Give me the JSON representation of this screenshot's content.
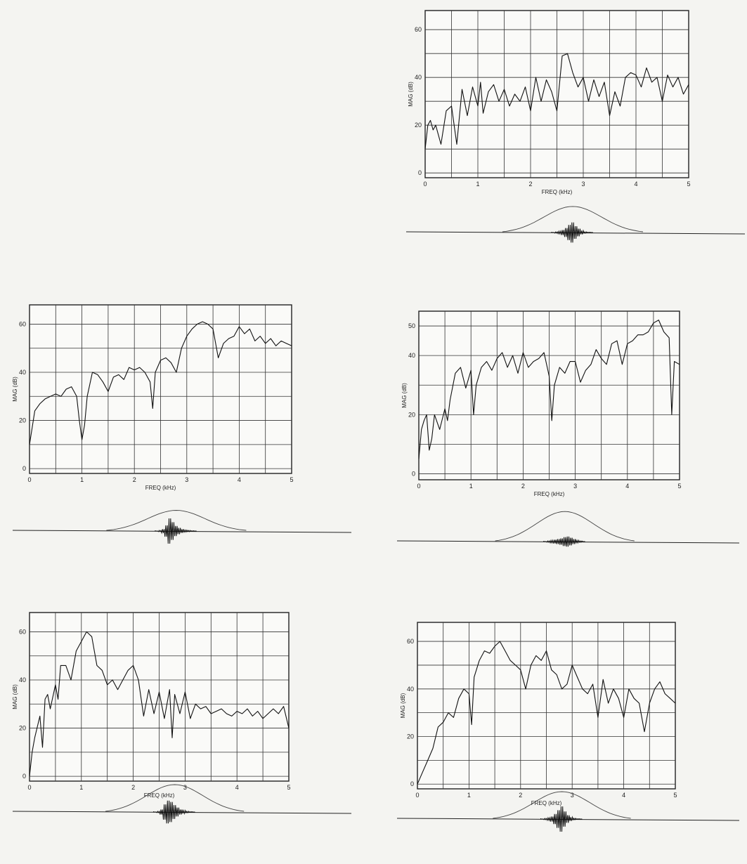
{
  "chart_data": [
    {
      "type": "line",
      "xlabel": "FREQ (kHz)",
      "ylabel": "MAG (dB)",
      "xlim": [
        0,
        5
      ],
      "ylim": [
        -2,
        68
      ],
      "xticks": [
        "0",
        "1",
        "2",
        "3",
        "4",
        "5"
      ],
      "yticks": [
        "0",
        "20",
        "40",
        "60"
      ],
      "ytick_values": [
        0,
        20,
        40,
        60
      ],
      "grid": true,
      "series": [
        {
          "x": [
            0,
            0.05,
            0.1,
            0.15,
            0.2,
            0.3,
            0.4,
            0.5,
            0.6,
            0.7,
            0.8,
            0.9,
            1.0,
            1.05,
            1.1,
            1.2,
            1.3,
            1.4,
            1.5,
            1.6,
            1.7,
            1.8,
            1.9,
            2.0,
            2.1,
            2.2,
            2.3,
            2.4,
            2.5,
            2.6,
            2.7,
            2.8,
            2.9,
            3.0,
            3.1,
            3.2,
            3.3,
            3.4,
            3.5,
            3.6,
            3.7,
            3.8,
            3.9,
            4.0,
            4.1,
            4.2,
            4.3,
            4.4,
            4.5,
            4.6,
            4.7,
            4.8,
            4.9,
            5.0
          ],
          "y": [
            10,
            20,
            22,
            18,
            20,
            12,
            26,
            28,
            12,
            35,
            24,
            36,
            28,
            38,
            25,
            34,
            37,
            30,
            35,
            28,
            33,
            30,
            36,
            26,
            40,
            30,
            39,
            34,
            26,
            49,
            50,
            42,
            36,
            40,
            30,
            39,
            32,
            38,
            24,
            34,
            28,
            40,
            42,
            41,
            36,
            44,
            38,
            40,
            30,
            41,
            36,
            40,
            33,
            37
          ]
        }
      ],
      "pulse": [
        0,
        0.05,
        0.1,
        0.2,
        0.35,
        0.6,
        0.8,
        0.5,
        0.3,
        0.15,
        0.05,
        0.02,
        0
      ]
    },
    {
      "type": "line",
      "xlabel": "FREQ (kHz)",
      "ylabel": "MAG (dB)",
      "xlim": [
        0,
        5
      ],
      "ylim": [
        -2,
        68
      ],
      "xticks": [
        "0",
        "1",
        "2",
        "3",
        "4",
        "5"
      ],
      "yticks": [
        "0",
        "20",
        "40",
        "60"
      ],
      "ytick_values": [
        0,
        20,
        40,
        60
      ],
      "grid": true,
      "series": [
        {
          "x": [
            0,
            0.1,
            0.2,
            0.3,
            0.4,
            0.5,
            0.6,
            0.7,
            0.8,
            0.9,
            0.95,
            1.0,
            1.05,
            1.1,
            1.2,
            1.3,
            1.4,
            1.5,
            1.6,
            1.7,
            1.8,
            1.9,
            2.0,
            2.1,
            2.2,
            2.3,
            2.35,
            2.4,
            2.5,
            2.6,
            2.7,
            2.8,
            2.9,
            3.0,
            3.1,
            3.2,
            3.3,
            3.4,
            3.5,
            3.6,
            3.7,
            3.8,
            3.9,
            4.0,
            4.1,
            4.2,
            4.3,
            4.4,
            4.5,
            4.6,
            4.7,
            4.8,
            4.9,
            5.0
          ],
          "y": [
            10,
            24,
            27,
            29,
            30,
            31,
            30,
            33,
            34,
            30,
            20,
            12,
            18,
            30,
            40,
            39,
            36,
            32,
            38,
            39,
            37,
            42,
            41,
            42,
            40,
            36,
            25,
            40,
            45,
            46,
            44,
            40,
            50,
            55,
            58,
            60,
            61,
            60,
            58,
            46,
            52,
            54,
            55,
            59,
            56,
            58,
            53,
            55,
            52,
            54,
            51,
            53,
            52,
            51
          ]
        }
      ],
      "pulse": [
        0,
        0.05,
        0.15,
        0.45,
        1.0,
        0.7,
        0.4,
        0.25,
        0.15,
        0.08,
        0.05,
        0.02,
        0
      ]
    },
    {
      "type": "line",
      "xlabel": "FREQ (kHz)",
      "ylabel": "MAG (dB)",
      "xlim": [
        0,
        5
      ],
      "ylim": [
        -2,
        55
      ],
      "xticks": [
        "0",
        "1",
        "2",
        "3",
        "4",
        "5"
      ],
      "yticks": [
        "0",
        "20",
        "40",
        "50"
      ],
      "ytick_values": [
        0,
        20,
        40,
        50
      ],
      "grid": true,
      "series": [
        {
          "x": [
            0,
            0.05,
            0.1,
            0.15,
            0.2,
            0.25,
            0.3,
            0.4,
            0.5,
            0.55,
            0.6,
            0.7,
            0.8,
            0.9,
            1.0,
            1.05,
            1.1,
            1.2,
            1.3,
            1.4,
            1.5,
            1.6,
            1.7,
            1.8,
            1.9,
            2.0,
            2.1,
            2.2,
            2.3,
            2.4,
            2.5,
            2.55,
            2.6,
            2.7,
            2.8,
            2.9,
            3.0,
            3.1,
            3.2,
            3.3,
            3.4,
            3.5,
            3.6,
            3.7,
            3.8,
            3.9,
            4.0,
            4.1,
            4.2,
            4.3,
            4.4,
            4.5,
            4.6,
            4.7,
            4.8,
            4.85,
            4.9,
            5.0
          ],
          "y": [
            5,
            15,
            18,
            20,
            8,
            12,
            20,
            15,
            22,
            18,
            25,
            34,
            36,
            29,
            35,
            20,
            30,
            36,
            38,
            35,
            39,
            41,
            36,
            40,
            34,
            41,
            36,
            38,
            39,
            41,
            33,
            18,
            30,
            36,
            34,
            38,
            38,
            31,
            35,
            37,
            42,
            39,
            37,
            44,
            45,
            37,
            44,
            45,
            47,
            47,
            48,
            51,
            52,
            48,
            46,
            20,
            38,
            37
          ]
        }
      ],
      "pulse": [
        0,
        0.05,
        0.1,
        0.15,
        0.2,
        0.25,
        0.35,
        0.4,
        0.3,
        0.2,
        0.1,
        0.05,
        0
      ]
    },
    {
      "type": "line",
      "xlabel": "FREQ (kHz)",
      "ylabel": "MAG (dB)",
      "xlim": [
        0,
        5
      ],
      "ylim": [
        -2,
        68
      ],
      "xticks": [
        "0",
        "1",
        "2",
        "3",
        "4",
        "5"
      ],
      "yticks": [
        "0",
        "20",
        "40",
        "60"
      ],
      "ytick_values": [
        0,
        20,
        40,
        60
      ],
      "grid": true,
      "series": [
        {
          "x": [
            0,
            0.05,
            0.1,
            0.2,
            0.25,
            0.3,
            0.35,
            0.4,
            0.5,
            0.55,
            0.6,
            0.7,
            0.8,
            0.9,
            1.0,
            1.1,
            1.2,
            1.3,
            1.4,
            1.5,
            1.6,
            1.7,
            1.8,
            1.9,
            2.0,
            2.1,
            2.2,
            2.3,
            2.4,
            2.5,
            2.6,
            2.7,
            2.75,
            2.8,
            2.9,
            3.0,
            3.1,
            3.2,
            3.3,
            3.4,
            3.5,
            3.6,
            3.7,
            3.8,
            3.9,
            4.0,
            4.1,
            4.2,
            4.3,
            4.4,
            4.5,
            4.6,
            4.7,
            4.8,
            4.9,
            5.0
          ],
          "y": [
            0,
            10,
            16,
            25,
            12,
            32,
            34,
            28,
            38,
            32,
            46,
            46,
            40,
            52,
            56,
            60,
            58,
            46,
            44,
            38,
            40,
            36,
            40,
            44,
            46,
            40,
            25,
            36,
            26,
            35,
            24,
            36,
            16,
            34,
            26,
            35,
            24,
            30,
            28,
            29,
            26,
            27,
            28,
            26,
            25,
            27,
            26,
            28,
            25,
            27,
            24,
            26,
            28,
            26,
            29,
            20
          ]
        }
      ],
      "pulse": [
        0,
        0.05,
        0.2,
        0.6,
        0.9,
        0.8,
        0.55,
        0.35,
        0.2,
        0.12,
        0.06,
        0.03,
        0
      ]
    },
    {
      "type": "line",
      "xlabel": "FREQ (kHz)",
      "ylabel": "MAG (dB)",
      "xlim": [
        0,
        5
      ],
      "ylim": [
        -2,
        68
      ],
      "xticks": [
        "0",
        "1",
        "2",
        "3",
        "4",
        "5"
      ],
      "yticks": [
        "0",
        "20",
        "40",
        "60"
      ],
      "ytick_values": [
        0,
        20,
        40,
        60
      ],
      "grid": true,
      "series": [
        {
          "x": [
            0,
            0.1,
            0.2,
            0.3,
            0.4,
            0.5,
            0.6,
            0.7,
            0.8,
            0.9,
            1.0,
            1.05,
            1.1,
            1.2,
            1.3,
            1.4,
            1.5,
            1.6,
            1.7,
            1.8,
            1.9,
            2.0,
            2.1,
            2.2,
            2.3,
            2.4,
            2.5,
            2.6,
            2.7,
            2.8,
            2.9,
            3.0,
            3.1,
            3.2,
            3.3,
            3.4,
            3.5,
            3.6,
            3.7,
            3.8,
            3.9,
            4.0,
            4.1,
            4.2,
            4.3,
            4.4,
            4.5,
            4.6,
            4.7,
            4.8,
            4.9,
            5.0
          ],
          "y": [
            0,
            5,
            10,
            15,
            24,
            26,
            30,
            28,
            36,
            40,
            38,
            25,
            45,
            52,
            56,
            55,
            58,
            60,
            56,
            52,
            50,
            48,
            40,
            50,
            54,
            52,
            56,
            48,
            46,
            40,
            42,
            50,
            45,
            40,
            38,
            42,
            28,
            44,
            34,
            40,
            36,
            28,
            40,
            36,
            34,
            22,
            34,
            40,
            43,
            38,
            36,
            34
          ]
        }
      ],
      "pulse": [
        0,
        0.05,
        0.1,
        0.2,
        0.4,
        0.7,
        1.0,
        0.6,
        0.3,
        0.15,
        0.06,
        0.02,
        0
      ]
    }
  ]
}
